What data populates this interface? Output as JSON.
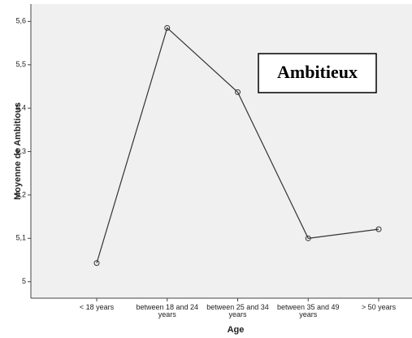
{
  "chart_data": {
    "type": "line",
    "annotation": "Ambitieux",
    "x_label": "Age",
    "y_label": "Moyenne de Ambitious",
    "categories": [
      "< 18 years",
      "between 18 and 24 years",
      "between 25 and 34 years",
      "between 35 and 49 years",
      "> 50 years"
    ],
    "series": [
      {
        "name": "Ambitious",
        "color": "#333333",
        "values": [
          5.043,
          5.585,
          5.437,
          5.1,
          5.121
        ]
      }
    ],
    "ylim": [
      4.962,
      5.64
    ],
    "yticks": [
      5,
      {
        "value": 5.1,
        "label": "5,1"
      },
      {
        "value": 5.2,
        "label": "5,2"
      },
      {
        "value": 5.3,
        "label": "5,3"
      },
      {
        "value": 5.4,
        "label": "5,4"
      },
      {
        "value": 5.5,
        "label": "5,5"
      },
      {
        "value": 5.6,
        "label": "5,6"
      }
    ],
    "background": "#f0f0f0"
  }
}
